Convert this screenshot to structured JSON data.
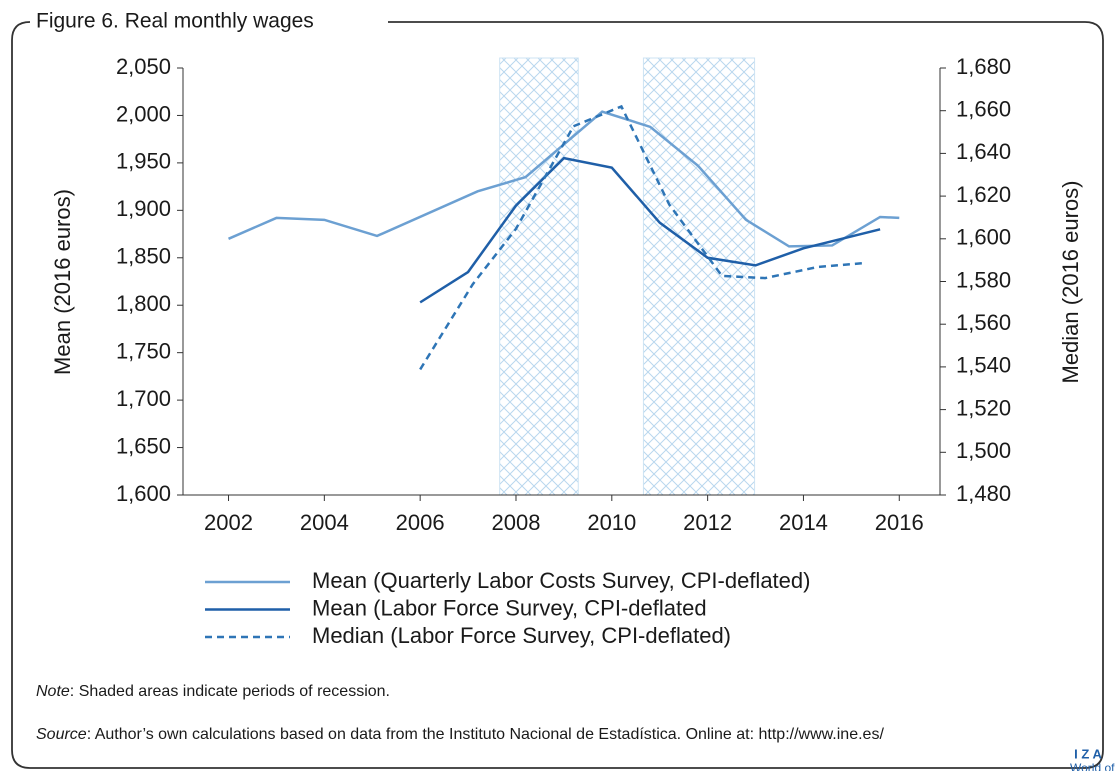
{
  "chart_data": {
    "type": "line",
    "title": "Figure 6. Real monthly wages",
    "y_label": "Mean (2016 euros)",
    "y2_label": "Median (2016 euros)",
    "xlim": [
      2001.05,
      2016.85
    ],
    "xticks": [
      2002,
      2004,
      2006,
      2008,
      2010,
      2012,
      2014,
      2016
    ],
    "ylim": [
      1600,
      2050
    ],
    "yticks": [
      {
        "value": 1600,
        "label": "1,600"
      },
      {
        "value": 1650,
        "label": "1,650"
      },
      {
        "value": 1700,
        "label": "1,700"
      },
      {
        "value": 1750,
        "label": "1,750"
      },
      {
        "value": 1800,
        "label": "1,800"
      },
      {
        "value": 1850,
        "label": "1,850"
      },
      {
        "value": 1900,
        "label": "1,900"
      },
      {
        "value": 1950,
        "label": "1,950"
      },
      {
        "value": 2000,
        "label": "2,000"
      },
      {
        "value": 2050,
        "label": "2,050"
      }
    ],
    "y2lim": [
      1480,
      1680
    ],
    "y2ticks": [
      {
        "value": 1480,
        "label": "1,480"
      },
      {
        "value": 1500,
        "label": "1,500"
      },
      {
        "value": 1520,
        "label": "1,520"
      },
      {
        "value": 1540,
        "label": "1,540"
      },
      {
        "value": 1560,
        "label": "1,560"
      },
      {
        "value": 1580,
        "label": "1,580"
      },
      {
        "value": 1600,
        "label": "1,600"
      },
      {
        "value": 1620,
        "label": "1,620"
      },
      {
        "value": 1640,
        "label": "1,640"
      },
      {
        "value": 1660,
        "label": "1,660"
      },
      {
        "value": 1680,
        "label": "1,680"
      }
    ],
    "recessions": [
      [
        2007.66,
        2009.3
      ],
      [
        2010.66,
        2012.98
      ]
    ],
    "series": [
      {
        "name": "Mean (Quarterly Labor Costs Survey, CPI-deflated)",
        "color": "#6ca0d2",
        "dash": false,
        "x": [
          2002,
          2003,
          2004,
          2005.1,
          2007.2,
          2008.2,
          2009.8,
          2010.8,
          2011.8,
          2012.8,
          2013.7,
          2014.6,
          2015.6,
          2016
        ],
        "values": [
          1870,
          1892,
          1890,
          1873,
          1920,
          1935,
          2004,
          1988,
          1947,
          1890,
          1862,
          1863,
          1893,
          1892
        ]
      },
      {
        "name": "Mean (Labor Force Survey, CPI-deflated",
        "color": "#1f5fa8",
        "dash": false,
        "x": [
          2006,
          2007,
          2008,
          2009,
          2010,
          2011,
          2012,
          2013,
          2014,
          2015.6
        ],
        "values": [
          1803,
          1835,
          1905,
          1955,
          1945,
          1887,
          1850,
          1842,
          1860,
          1880
        ]
      },
      {
        "name": "Median (Labor Force Survey, CPI-deflated)",
        "color": "#2e75b6",
        "dash": true,
        "axis": "y2",
        "x": [
          2006,
          2007.1,
          2008,
          2009.2,
          2010.2,
          2011.2,
          2012.3,
          2013.2,
          2014.3,
          2015.3
        ],
        "values": [
          1538.8,
          1578.8,
          1604.7,
          1652.7,
          1662,
          1616,
          1582.6,
          1581.6,
          1586.8,
          1588.7
        ]
      }
    ],
    "note": {
      "label": "Note",
      "text": ": Shaded areas indicate periods of recession."
    },
    "source": {
      "label": "Source",
      "text": ": Author’s own calculations based on data from the Instituto Nacional de Estadística. Online at: http://www.ine.es/"
    },
    "logo": {
      "name": "I Z A",
      "sub": "World of Labor"
    }
  }
}
